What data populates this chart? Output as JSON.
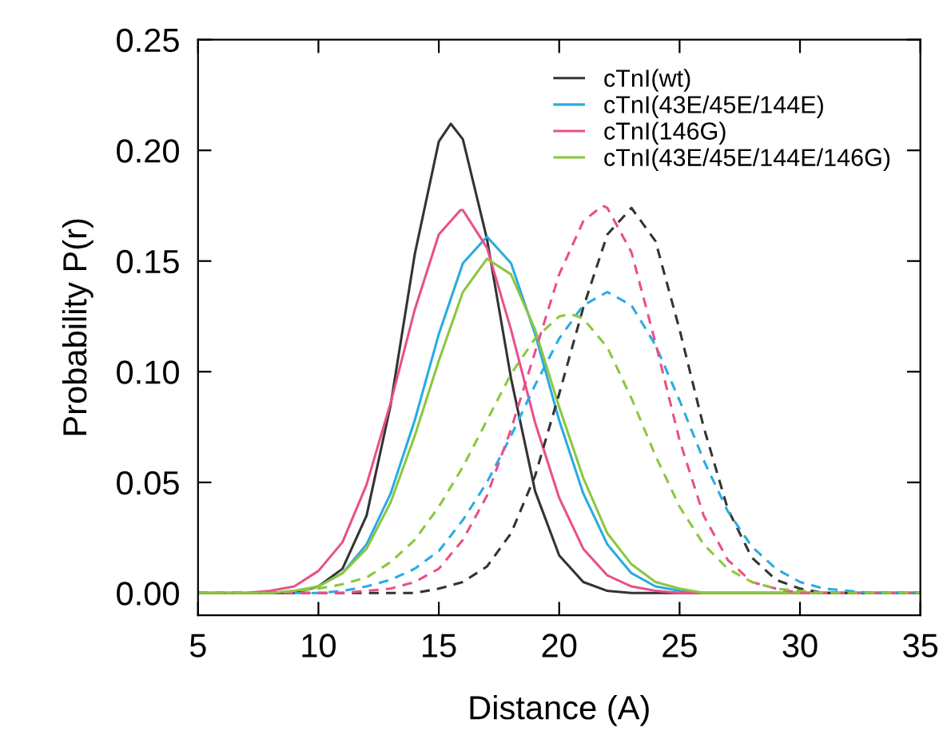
{
  "chart_data": {
    "type": "line",
    "xlabel": "Distance (A)",
    "ylabel": "Probability P(r)",
    "x": [
      5,
      6,
      7,
      8,
      9,
      10,
      11,
      12,
      13,
      14,
      15,
      16,
      17,
      18,
      19,
      20,
      21,
      22,
      23,
      24,
      25,
      26,
      27,
      28,
      29,
      30,
      31,
      32,
      33,
      34,
      35
    ],
    "xlim": [
      5,
      35
    ],
    "xticks": [
      5,
      10,
      15,
      20,
      25,
      30,
      35
    ],
    "ylim": [
      -0.01,
      0.25
    ],
    "yticks": [
      {
        "value": 0,
        "label": "0.00"
      },
      {
        "value": 0.05,
        "label": "0.05"
      },
      {
        "value": 0.1,
        "label": "0.10"
      },
      {
        "value": 0.15,
        "label": "0.15"
      },
      {
        "value": 0.2,
        "label": "0.20"
      },
      {
        "value": 0.25,
        "label": "0.25"
      }
    ],
    "grid": false,
    "legend": "top right",
    "marker": "none",
    "series": [
      {
        "name": "cTnI(wt)",
        "color": "#333333",
        "line_style": "solid",
        "x": [
          5,
          6,
          7,
          8,
          9,
          10,
          11,
          12,
          13,
          14,
          15,
          15.5,
          16,
          17,
          18,
          19,
          20,
          21,
          22,
          23,
          24,
          25,
          26,
          27,
          28,
          29,
          30,
          31,
          32,
          33,
          34,
          35
        ],
        "values": [
          0,
          0,
          0,
          0,
          0,
          0.003,
          0.011,
          0.035,
          0.085,
          0.153,
          0.204,
          0.212,
          0.205,
          0.16,
          0.097,
          0.046,
          0.017,
          0.005,
          0.001,
          0,
          0,
          0,
          0,
          0,
          0,
          0,
          0,
          0,
          0,
          0,
          0,
          0
        ]
      },
      {
        "name": "cTnI(43E/45E/144E)",
        "color": "#29abe2",
        "line_style": "solid",
        "values": [
          null,
          null,
          null,
          null,
          null,
          0.003,
          0.009,
          0.022,
          0.045,
          0.078,
          0.117,
          0.149,
          0.161,
          0.149,
          0.117,
          0.078,
          0.045,
          0.022,
          0.009,
          0.003,
          0.001,
          0,
          0,
          0,
          0,
          0,
          0,
          0,
          0,
          0,
          0
        ]
      },
      {
        "name": "cTnI(146G)",
        "color": "#e8508a",
        "line_style": "solid",
        "x": [
          5,
          6,
          7,
          8,
          9,
          10,
          11,
          12,
          13,
          14,
          15,
          15.9,
          16,
          17,
          18,
          19,
          20,
          21,
          22,
          23,
          24,
          25,
          26,
          27,
          28,
          29,
          30,
          31,
          32,
          33,
          34,
          35
        ],
        "values": [
          0,
          0,
          0,
          0.001,
          0.003,
          0.01,
          0.023,
          0.049,
          0.086,
          0.128,
          0.162,
          0.173,
          0.173,
          0.156,
          0.119,
          0.077,
          0.043,
          0.02,
          0.008,
          0.003,
          0.001,
          0,
          0,
          0,
          0,
          0,
          0,
          0,
          0,
          0,
          0,
          0
        ]
      },
      {
        "name": "cTnI(43E/45E/144E/146G)",
        "color": "#8cc63f",
        "line_style": "solid",
        "values": [
          0,
          0,
          0,
          0,
          0.001,
          0.003,
          0.009,
          0.02,
          0.041,
          0.071,
          0.105,
          0.136,
          0.151,
          0.144,
          0.119,
          0.084,
          0.052,
          0.027,
          0.013,
          0.005,
          0.002,
          0,
          0,
          0,
          0,
          0,
          0,
          0,
          0,
          0,
          0
        ]
      },
      {
        "color": "#333333",
        "line_style": "dashed",
        "values": [
          0,
          0,
          0,
          0,
          0,
          0,
          0,
          0,
          0,
          0,
          0.002,
          0.005,
          0.012,
          0.027,
          0.053,
          0.09,
          0.129,
          0.162,
          0.174,
          0.159,
          0.119,
          0.075,
          0.038,
          0.016,
          0.006,
          0.002,
          0,
          0,
          0,
          0,
          0
        ]
      },
      {
        "color": "#29abe2",
        "line_style": "dashed",
        "values": [
          null,
          null,
          null,
          null,
          0,
          0,
          0.001,
          0.003,
          0.006,
          0.011,
          0.019,
          0.033,
          0.05,
          0.071,
          0.094,
          0.115,
          0.13,
          0.136,
          0.13,
          0.112,
          0.087,
          0.06,
          0.037,
          0.021,
          0.011,
          0.005,
          0.002,
          0.001,
          0,
          0,
          0
        ]
      },
      {
        "color": "#e8508a",
        "line_style": "dashed",
        "x": [
          5,
          6,
          7,
          8,
          9,
          10,
          11,
          12,
          13,
          14,
          15,
          16,
          17,
          18,
          19,
          20,
          21,
          21.8,
          22,
          23,
          24,
          25,
          26,
          27,
          28,
          29,
          30,
          31,
          32,
          33,
          34,
          35
        ],
        "values": [
          0,
          0,
          0,
          0,
          0,
          0,
          0,
          0.001,
          0.002,
          0.005,
          0.011,
          0.024,
          0.044,
          0.074,
          0.109,
          0.144,
          0.168,
          0.175,
          0.174,
          0.154,
          0.113,
          0.069,
          0.035,
          0.015,
          0.005,
          0.002,
          0,
          0,
          0,
          0,
          0,
          0
        ]
      },
      {
        "color": "#8cc63f",
        "line_style": "dashed",
        "x": [
          5,
          6,
          7,
          8,
          9,
          10,
          11,
          12,
          13,
          14,
          15,
          16,
          17,
          18,
          19,
          20,
          20.5,
          21,
          22,
          23,
          24,
          25,
          26,
          27,
          28,
          29,
          30,
          31,
          32,
          33,
          34,
          35
        ],
        "values": [
          0,
          0,
          0,
          0,
          0.001,
          0.002,
          0.004,
          0.007,
          0.014,
          0.024,
          0.039,
          0.057,
          0.078,
          0.099,
          0.115,
          0.125,
          0.126,
          0.124,
          0.111,
          0.088,
          0.062,
          0.039,
          0.022,
          0.011,
          0.005,
          0.002,
          0.001,
          0,
          0,
          0,
          0,
          0
        ]
      }
    ]
  }
}
